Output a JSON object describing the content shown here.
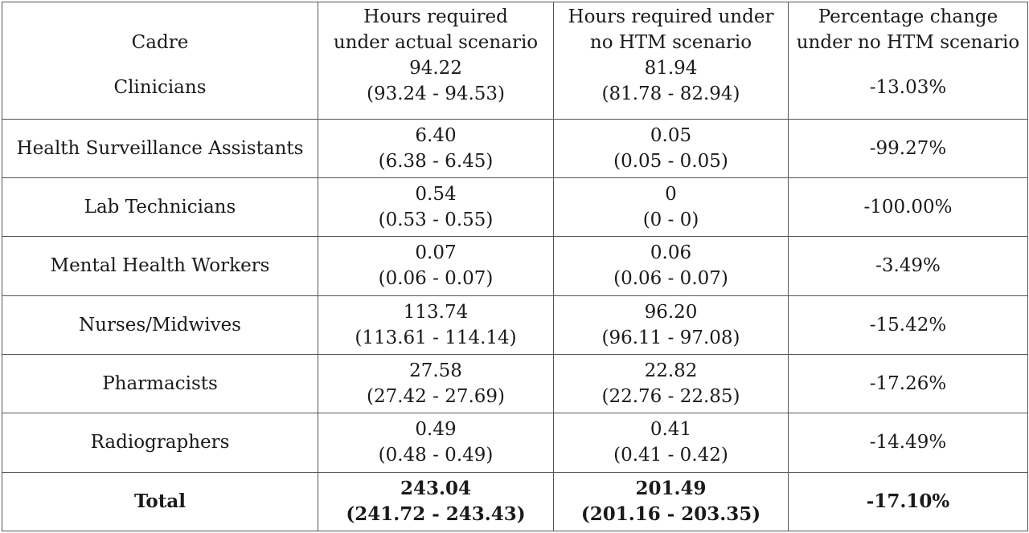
{
  "headers": {
    "cadre": "Cadre",
    "actual_line1": "Hours required",
    "actual_line2": "under actual scenario",
    "nohtm_line1": "Hours required under",
    "nohtm_line2": "no HTM scenario",
    "pct_line1": "Percentage change",
    "pct_line2": "under no HTM scenario"
  },
  "rows": [
    {
      "cadre": "Clinicians",
      "actual": "94.22",
      "actual_ci": "(93.24 - 94.53)",
      "nohtm": "81.94",
      "nohtm_ci": "(81.78 - 82.94)",
      "pct": "-13.03%"
    },
    {
      "cadre": "Health Surveillance Assistants",
      "actual": "6.40",
      "actual_ci": "(6.38 - 6.45)",
      "nohtm": "0.05",
      "nohtm_ci": "(0.05 - 0.05)",
      "pct": "-99.27%"
    },
    {
      "cadre": "Lab Technicians",
      "actual": "0.54",
      "actual_ci": "(0.53 - 0.55)",
      "nohtm": "0",
      "nohtm_ci": "(0 - 0)",
      "pct": "-100.00%"
    },
    {
      "cadre": "Mental Health Workers",
      "actual": "0.07",
      "actual_ci": "(0.06 - 0.07)",
      "nohtm": "0.06",
      "nohtm_ci": "(0.06 - 0.07)",
      "pct": "-3.49%"
    },
    {
      "cadre": "Nurses/Midwives",
      "actual": "113.74",
      "actual_ci": "(113.61 - 114.14)",
      "nohtm": "96.20",
      "nohtm_ci": "(96.11 - 97.08)",
      "pct": "-15.42%"
    },
    {
      "cadre": "Pharmacists",
      "actual": "27.58",
      "actual_ci": "(27.42 - 27.69)",
      "nohtm": "22.82",
      "nohtm_ci": "(22.76 - 22.85)",
      "pct": "-17.26%"
    },
    {
      "cadre": "Radiographers",
      "actual": "0.49",
      "actual_ci": "(0.48 - 0.49)",
      "nohtm": "0.41",
      "nohtm_ci": "(0.41 - 0.42)",
      "pct": "-14.49%"
    }
  ],
  "total": {
    "cadre": "Total",
    "actual": "243.04",
    "actual_ci": "(241.72 - 243.43)",
    "nohtm": "201.49",
    "nohtm_ci": "(201.16 - 203.35)",
    "pct": "-17.10%"
  }
}
